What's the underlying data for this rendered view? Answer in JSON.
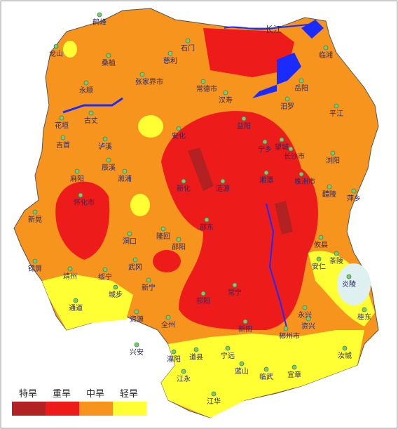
{
  "river_label": "长江",
  "legend": [
    "特旱",
    "重旱",
    "中旱",
    "轻旱"
  ],
  "places": [
    "鹤峰",
    "龙山",
    "桑植",
    "石门",
    "慈利",
    "张家界市",
    "永顺",
    "常德市",
    "汉寿",
    "临湘",
    "岳阳",
    "汨罗",
    "平江",
    "花垣",
    "古丈",
    "吉首",
    "泸溪",
    "安化",
    "益阳",
    "宁乡",
    "望城",
    "长沙市",
    "浏阳",
    "麻阳",
    "辰溪",
    "溆浦",
    "怀化市",
    "新晃",
    "新化",
    "涟源",
    "湘潭",
    "株洲市",
    "醴陵",
    "萍乡",
    "洞口",
    "隆回",
    "邵阳",
    "邵东",
    "攸县",
    "茶陵",
    "安仁",
    "炎陵",
    "锦屏",
    "靖州",
    "绥宁",
    "武冈",
    "城步",
    "新宁",
    "常宁",
    "祁阳",
    "永兴",
    "资兴",
    "桂东",
    "通道",
    "资源",
    "全州",
    "新田",
    "郴州市",
    "兴安",
    "灌阳",
    "道县",
    "宁远",
    "蓝山",
    "临武",
    "宜章",
    "汝城",
    "江永",
    "江华"
  ]
}
